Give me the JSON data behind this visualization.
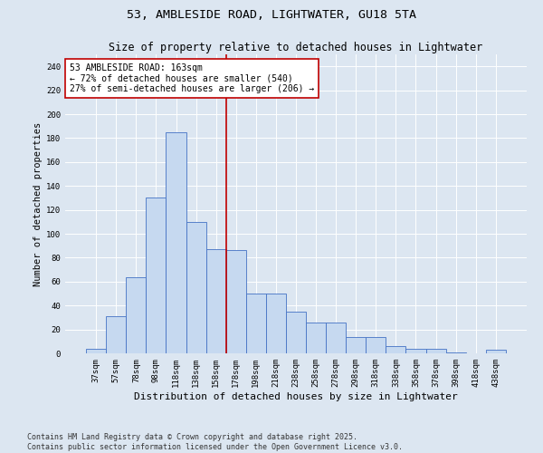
{
  "title": "53, AMBLESIDE ROAD, LIGHTWATER, GU18 5TA",
  "subtitle": "Size of property relative to detached houses in Lightwater",
  "xlabel": "Distribution of detached houses by size in Lightwater",
  "ylabel": "Number of detached properties",
  "categories": [
    "37sqm",
    "57sqm",
    "78sqm",
    "98sqm",
    "118sqm",
    "138sqm",
    "158sqm",
    "178sqm",
    "198sqm",
    "218sqm",
    "238sqm",
    "258sqm",
    "278sqm",
    "298sqm",
    "318sqm",
    "338sqm",
    "358sqm",
    "378sqm",
    "398sqm",
    "418sqm",
    "438sqm"
  ],
  "values": [
    4,
    31,
    64,
    130,
    185,
    110,
    87,
    86,
    50,
    50,
    35,
    26,
    26,
    14,
    14,
    6,
    4,
    4,
    1,
    0,
    3
  ],
  "bar_color": "#c6d9f0",
  "bar_edge_color": "#4472c4",
  "vline_color": "#c00000",
  "annotation_text": "53 AMBLESIDE ROAD: 163sqm\n← 72% of detached houses are smaller (540)\n27% of semi-detached houses are larger (206) →",
  "annotation_box_color": "#ffffff",
  "annotation_box_edge": "#c00000",
  "ylim": [
    0,
    250
  ],
  "yticks": [
    0,
    20,
    40,
    60,
    80,
    100,
    120,
    140,
    160,
    180,
    200,
    220,
    240
  ],
  "bg_color": "#dce6f1",
  "plot_bg_color": "#dce6f1",
  "footer_text": "Contains HM Land Registry data © Crown copyright and database right 2025.\nContains public sector information licensed under the Open Government Licence v3.0.",
  "title_fontsize": 9.5,
  "subtitle_fontsize": 8.5,
  "xlabel_fontsize": 8,
  "ylabel_fontsize": 7.5,
  "tick_fontsize": 6.5,
  "annotation_fontsize": 7,
  "footer_fontsize": 6
}
